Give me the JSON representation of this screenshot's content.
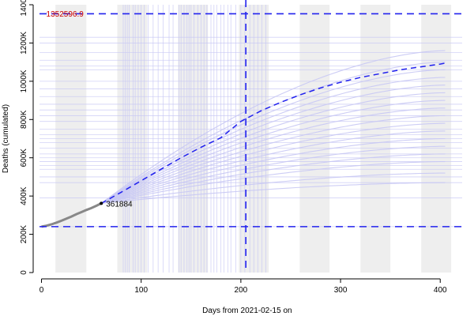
{
  "chart_data": {
    "type": "line",
    "xlabel": "Days from 2021-02-15 on",
    "ylabel": "Deaths (cumulated)",
    "xlim": [
      -2,
      422
    ],
    "ylim": [
      0,
      1400000
    ],
    "x_ticks": [
      0,
      100,
      200,
      300,
      400
    ],
    "y_ticks": [
      0,
      200000,
      400000,
      600000,
      800000,
      1000000,
      1200000,
      1400000
    ],
    "y_tick_labels": [
      "0",
      "200K",
      "400K",
      "600K",
      "800K",
      "1000K",
      "1200K",
      "1400K"
    ],
    "shaded_bands": [
      [
        14,
        45
      ],
      [
        76,
        106
      ],
      [
        137,
        167
      ],
      [
        198,
        228
      ],
      [
        259,
        289
      ],
      [
        320,
        350
      ],
      [
        381,
        411
      ]
    ],
    "horizontal_reference_lines": [
      {
        "y": 1352596.9,
        "label": "1352596.9",
        "label_color": "#cc0000"
      },
      {
        "y": 240000
      }
    ],
    "vertical_reference_line": {
      "x": 205
    },
    "observed_end_annotation": {
      "x": 60,
      "y": 361884,
      "label": "361884"
    },
    "series": [
      {
        "role": "observed",
        "color": "#888888",
        "x": [
          0,
          5,
          10,
          15,
          20,
          25,
          30,
          35,
          40,
          45,
          50,
          55,
          60
        ],
        "y": [
          240000,
          245000,
          252000,
          261000,
          271000,
          282000,
          293000,
          305000,
          316000,
          327000,
          337000,
          349000,
          361884
        ]
      },
      {
        "role": "forecast",
        "color": "#2222ee",
        "x": [
          60,
          80,
          100,
          120,
          140,
          160,
          180,
          200,
          220,
          240,
          260,
          280,
          300,
          320,
          340,
          360,
          380,
          400,
          405
        ],
        "y": [
          361884,
          420000,
          480000,
          540000,
          600000,
          655000,
          705000,
          790000,
          845000,
          890000,
          930000,
          965000,
          995000,
          1020000,
          1040000,
          1060000,
          1075000,
          1090000,
          1095000
        ]
      }
    ],
    "grid": false,
    "legend": "none"
  }
}
